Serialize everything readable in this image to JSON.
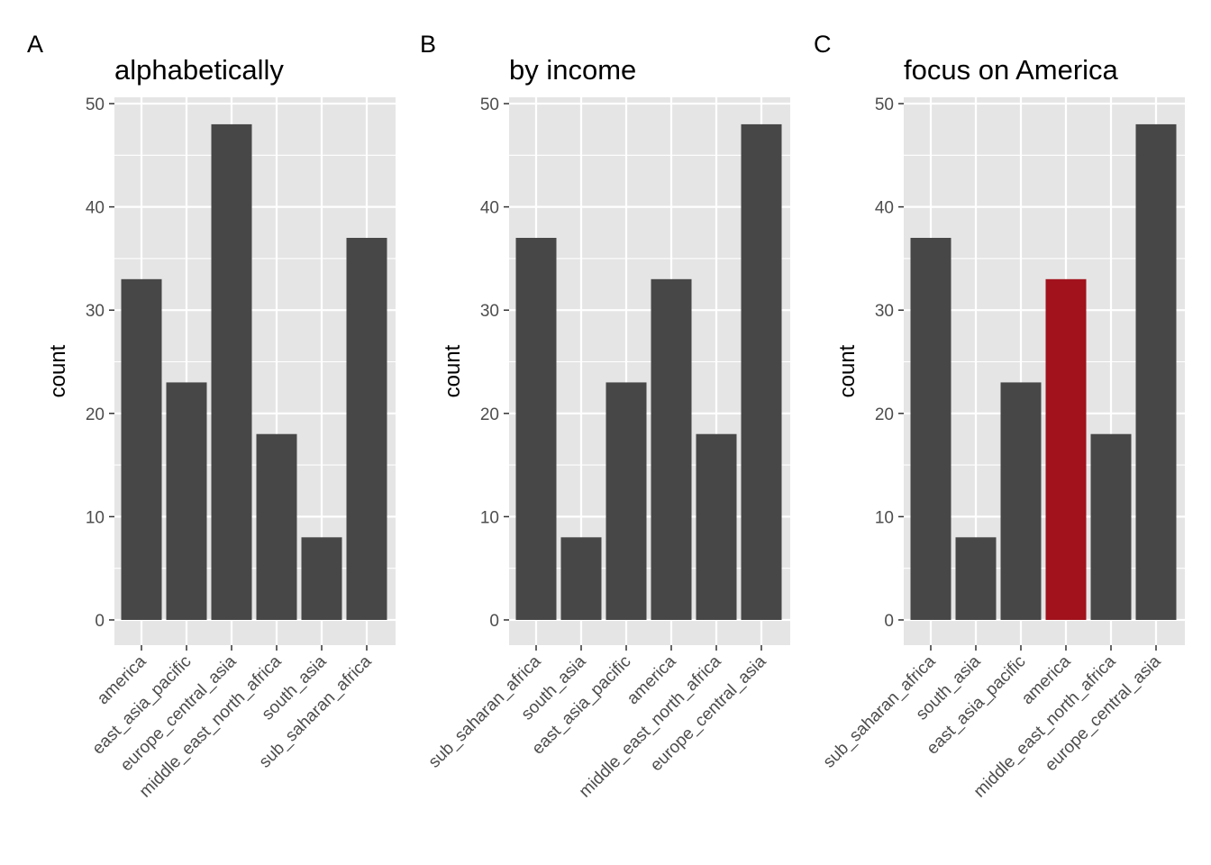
{
  "colors": {
    "bar": "#474747",
    "highlight": "#A1121C",
    "panel_background": "#E5E5E5",
    "grid": "#FFFFFF",
    "tick": "#333333"
  },
  "chart_data": [
    {
      "type": "bar",
      "tag": "A",
      "title": "alphabetically",
      "xlabel": "",
      "ylabel": "count",
      "ylim": [
        0,
        50
      ],
      "yticks": [
        0,
        10,
        20,
        30,
        40,
        50
      ],
      "grid": true,
      "categories": [
        "america",
        "east_asia_pacific",
        "europe_central_asia",
        "middle_east_north_africa",
        "south_asia",
        "sub_saharan_africa"
      ],
      "values": [
        33,
        23,
        48,
        18,
        8,
        37
      ],
      "highlight": null
    },
    {
      "type": "bar",
      "tag": "B",
      "title": "by income",
      "xlabel": "",
      "ylabel": "count",
      "ylim": [
        0,
        50
      ],
      "yticks": [
        0,
        10,
        20,
        30,
        40,
        50
      ],
      "grid": true,
      "categories": [
        "sub_saharan_africa",
        "south_asia",
        "east_asia_pacific",
        "america",
        "middle_east_north_africa",
        "europe_central_asia"
      ],
      "values": [
        37,
        8,
        23,
        33,
        18,
        48
      ],
      "highlight": null
    },
    {
      "type": "bar",
      "tag": "C",
      "title": "focus on America",
      "xlabel": "",
      "ylabel": "count",
      "ylim": [
        0,
        50
      ],
      "yticks": [
        0,
        10,
        20,
        30,
        40,
        50
      ],
      "grid": true,
      "categories": [
        "sub_saharan_africa",
        "south_asia",
        "east_asia_pacific",
        "america",
        "middle_east_north_africa",
        "europe_central_asia"
      ],
      "values": [
        37,
        8,
        23,
        33,
        18,
        48
      ],
      "highlight": "america"
    }
  ]
}
